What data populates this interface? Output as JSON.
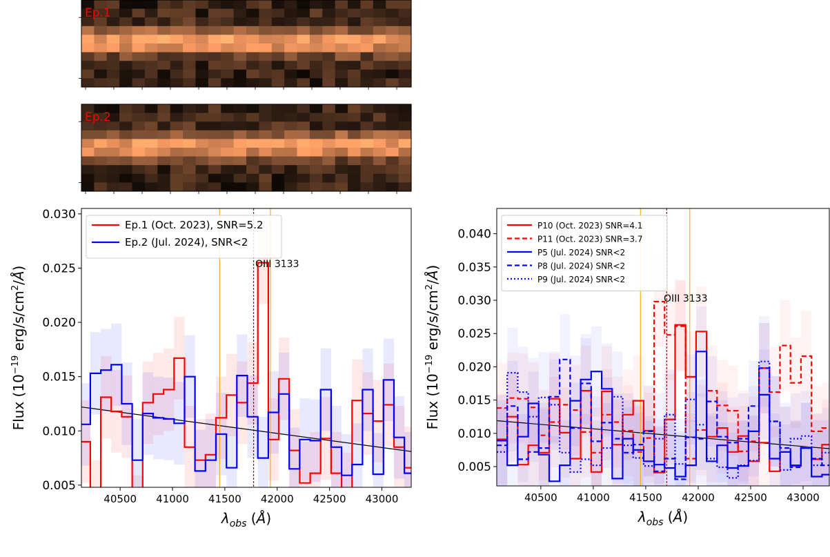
{
  "chart_data": [
    {
      "type": "heatmap",
      "panel_label": "Ep.1",
      "colormap": "copper"
    },
    {
      "type": "heatmap",
      "panel_label": "Ep.2",
      "colormap": "copper"
    },
    {
      "type": "line",
      "step": true,
      "xlabel": "λ_obs (Å)",
      "ylabel": "Flux (10^-19 erg/s/cm^2/Å)",
      "xlim": [
        40130,
        43280
      ],
      "ylim": [
        0.0048,
        0.0305
      ],
      "xticks": [
        40500,
        41000,
        41500,
        42000,
        42500,
        43000
      ],
      "yticks": [
        0.005,
        0.01,
        0.015,
        0.02,
        0.025,
        0.03
      ],
      "legend_position": "top-left",
      "series": [
        {
          "name": "Ep.1 (Oct. 2023), SNR=5.2",
          "color": "#ff0000",
          "x": [
            40130,
            40215,
            40315,
            40415,
            40515,
            40615,
            40715,
            40815,
            40915,
            41015,
            41115,
            41215,
            41315,
            41415,
            41515,
            41615,
            41715,
            41815,
            41915,
            42015,
            42115,
            42215,
            42315,
            42415,
            42515,
            42615,
            42715,
            42815,
            42915,
            43015,
            43115,
            43215
          ],
          "y": [
            0.009,
            0.0035,
            0.0131,
            0.0118,
            0.0113,
            0.0021,
            0.0126,
            0.0134,
            0.0138,
            0.0167,
            0.0085,
            0.0073,
            0.0078,
            0.0112,
            0.0133,
            0.0126,
            0.0144,
            0.0255,
            0.0092,
            0.0148,
            0.0082,
            0.0052,
            0.0061,
            0.0093,
            0.0061,
            0.0042,
            0.0128,
            0.0116,
            0.0109,
            0.0124,
            0.0085,
            0.0066
          ]
        },
        {
          "name": "Ep.2 (Jul. 2024), SNR<2",
          "color": "#0000ff",
          "x": [
            40130,
            40215,
            40315,
            40415,
            40515,
            40615,
            40715,
            40815,
            40915,
            41015,
            41115,
            41215,
            41315,
            41415,
            41515,
            41615,
            41715,
            41815,
            41915,
            42015,
            42115,
            42215,
            42315,
            42415,
            42515,
            42615,
            42715,
            42815,
            42915,
            43015,
            43115,
            43215
          ],
          "y": [
            0.0106,
            0.0153,
            0.0156,
            0.0161,
            0.0125,
            0.0073,
            0.0116,
            0.0112,
            0.0111,
            0.0107,
            0.015,
            0.0063,
            0.0073,
            0.0097,
            0.0066,
            0.0151,
            0.0113,
            0.0075,
            0.0117,
            0.0134,
            0.0065,
            0.0092,
            0.0091,
            0.0138,
            0.0085,
            0.0059,
            0.0069,
            0.0138,
            0.006,
            0.0147,
            0.0094,
            0.0061
          ]
        }
      ],
      "vlines": [
        {
          "x": 41450,
          "color": "#ffa500",
          "style": "solid"
        },
        {
          "x": 41775,
          "color": "#8b0000",
          "style": "dashed"
        },
        {
          "x": 41935,
          "color": "#ffa500",
          "style": "solid"
        }
      ],
      "continuum": {
        "x": [
          40130,
          43280
        ],
        "y": [
          0.0122,
          0.0081
        ],
        "color": "#000000"
      },
      "annotation": "OIII 3133"
    },
    {
      "type": "line",
      "step": true,
      "xlabel": "λ_obs (Å)",
      "ylabel": "Flux (10^-19 erg/s/cm^2/Å)",
      "xlim": [
        40080,
        43250
      ],
      "ylim": [
        0.0021,
        0.0438
      ],
      "xticks": [
        40500,
        41000,
        41500,
        42000,
        42500,
        43000
      ],
      "yticks": [
        0.005,
        0.01,
        0.015,
        0.02,
        0.025,
        0.03,
        0.035,
        0.04
      ],
      "legend_position": "top-left",
      "series": [
        {
          "name": "P10 (Oct. 2023) SNR=4.1",
          "color": "#ff0000",
          "dash": "solid",
          "x": [
            40080,
            40180,
            40280,
            40380,
            40480,
            40580,
            40680,
            40780,
            40880,
            40980,
            41080,
            41180,
            41280,
            41380,
            41480,
            41580,
            41680,
            41780,
            41880,
            41980,
            42080,
            42180,
            42280,
            42380,
            42480,
            42580,
            42680,
            42780,
            42880,
            42980,
            43080,
            43180
          ],
          "y": [
            0.0091,
            0.0125,
            0.0053,
            0.0082,
            0.0071,
            0.0152,
            0.0101,
            0.0062,
            0.0164,
            0.0042,
            0.0163,
            0.0083,
            0.0128,
            0.0149,
            0.0104,
            0.0041,
            0.0121,
            0.0263,
            0.0185,
            0.0253,
            0.0095,
            0.0108,
            0.0072,
            0.0096,
            0.0058,
            0.0086,
            0.0043,
            0.0072,
            0.0051,
            0.0079,
            0.0061,
            0.0083
          ]
        },
        {
          "name": "P11 (Oct. 2023) SNR=3.7",
          "color": "#ff0000",
          "dash": "dashed",
          "x": [
            40080,
            40180,
            40280,
            40380,
            40480,
            40580,
            40680,
            40780,
            40880,
            40980,
            41080,
            41180,
            41280,
            41380,
            41480,
            41580,
            41680,
            41780,
            41880,
            41980,
            42080,
            42180,
            42280,
            42380,
            42480,
            42580,
            42680,
            42780,
            42880,
            42980,
            43080,
            43180
          ],
          "y": [
            0.0138,
            0.0153,
            0.0152,
            0.0139,
            0.0097,
            0.0117,
            0.0143,
            0.0135,
            0.0102,
            0.0071,
            0.0128,
            0.0117,
            0.0104,
            0.0072,
            0.0093,
            0.0298,
            0.0248,
            0.0261,
            0.0062,
            0.0105,
            0.0164,
            0.0142,
            0.0134,
            0.0073,
            0.0088,
            0.0198,
            0.0162,
            0.0232,
            0.0176,
            0.0216,
            0.0103,
            0.0108
          ]
        },
        {
          "name": "P5 (Jul. 2024)  SNR<2",
          "color": "#0000ff",
          "dash": "solid",
          "x": [
            40080,
            40180,
            40280,
            40380,
            40480,
            40580,
            40680,
            40780,
            40880,
            40980,
            41080,
            41180,
            41280,
            41380,
            41480,
            41580,
            41680,
            41780,
            41880,
            41980,
            42080,
            42180,
            42280,
            42380,
            42480,
            42580,
            42680,
            42780,
            42880,
            42980,
            43080,
            43180
          ],
          "y": [
            0.0089,
            0.0052,
            0.0095,
            0.0145,
            0.0068,
            0.0028,
            0.0052,
            0.0149,
            0.0181,
            0.0193,
            0.0167,
            0.0032,
            0.0092,
            0.0075,
            0.0058,
            0.0053,
            0.0048,
            0.0035,
            0.0052,
            0.0223,
            0.0058,
            0.0082,
            0.0048,
            0.0051,
            0.0103,
            0.0158,
            0.0062,
            0.0072,
            0.0052,
            0.0078,
            0.0035,
            0.0038
          ]
        },
        {
          "name": "P8 (Jul. 2024)  SNR<2",
          "color": "#0000ff",
          "dash": "dashed",
          "x": [
            40080,
            40180,
            40280,
            40380,
            40480,
            40580,
            40680,
            40780,
            40880,
            40980,
            41080,
            41180,
            41280,
            41380,
            41480,
            41580,
            41680,
            41780,
            41880,
            41980,
            42080,
            42180,
            42280,
            42380,
            42480,
            42580,
            42680,
            42780,
            42880,
            42980,
            43080,
            43180
          ],
          "y": [
            0.0082,
            0.0141,
            0.0061,
            0.0072,
            0.0078,
            0.0155,
            0.0211,
            0.0108,
            0.0175,
            0.0088,
            0.0116,
            0.0092,
            0.0071,
            0.0083,
            0.0103,
            0.0043,
            0.0062,
            0.0031,
            0.0094,
            0.0092,
            0.0148,
            0.0095,
            0.0086,
            0.0092,
            0.0141,
            0.0198,
            0.0118,
            0.0078,
            0.0049,
            0.0078,
            0.0062,
            0.0052
          ]
        },
        {
          "name": "P9 (Jul. 2024)  SNR<2",
          "color": "#0000ff",
          "dash": "dotted",
          "x": [
            40080,
            40180,
            40280,
            40380,
            40480,
            40580,
            40680,
            40780,
            40880,
            40980,
            41080,
            41180,
            41280,
            41380,
            41480,
            41580,
            41680,
            41780,
            41880,
            41980,
            42080,
            42180,
            42280,
            42380,
            42480,
            42580,
            42680,
            42780,
            42880,
            42980,
            43080,
            43180
          ],
          "y": [
            0.0072,
            0.0191,
            0.0162,
            0.0125,
            0.0154,
            0.0143,
            0.0071,
            0.0042,
            0.0061,
            0.0052,
            0.0078,
            0.0155,
            0.0082,
            0.0063,
            0.0051,
            0.0092,
            0.0128,
            0.0054,
            0.0151,
            0.0113,
            0.0062,
            0.0049,
            0.0033,
            0.0052,
            0.0059,
            0.0208,
            0.0118,
            0.0045,
            0.0092,
            0.0096,
            0.0052,
            0.0071
          ]
        }
      ],
      "vlines": [
        {
          "x": 41450,
          "color": "#ffa500",
          "style": "solid"
        },
        {
          "x": 41700,
          "color": "#8b0000",
          "style": "dashed"
        },
        {
          "x": 41920,
          "color": "#ffa500",
          "style": "solid"
        }
      ],
      "continuum": {
        "x": [
          40080,
          43250
        ],
        "y": [
          0.0119,
          0.0077
        ],
        "color": "#000000"
      },
      "annotation": "OIII 3133"
    }
  ]
}
